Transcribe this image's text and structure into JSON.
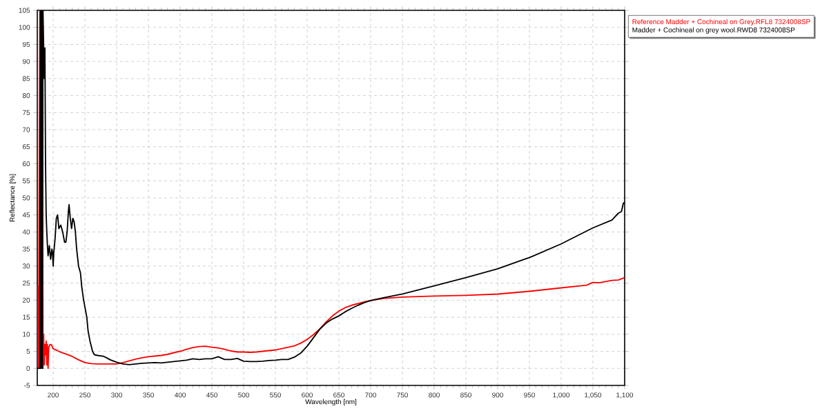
{
  "chart_data": {
    "type": "line",
    "xlabel": "Wavelength [nm]",
    "ylabel": "Reflectance [%]",
    "xlim": [
      175,
      1100
    ],
    "ylim": [
      -5,
      105
    ],
    "xticks": [
      200,
      250,
      300,
      350,
      400,
      450,
      500,
      550,
      600,
      650,
      700,
      750,
      800,
      850,
      900,
      950,
      {
        "value": 1000,
        "label": "1,000"
      },
      {
        "value": 1050,
        "label": "1,050"
      },
      {
        "value": 1100,
        "label": "1,100"
      }
    ],
    "yticks": [
      -5,
      0,
      5,
      10,
      15,
      20,
      25,
      30,
      35,
      40,
      45,
      50,
      55,
      60,
      65,
      70,
      75,
      80,
      85,
      90,
      95,
      100,
      105
    ],
    "grid": true,
    "legend": "top right",
    "line_style": "solid",
    "marker": "none",
    "series": [
      {
        "name": "Reference Madder + Cochineal on Grey.RFL8 7324008SP",
        "color": "#ff0000",
        "x": [
          175,
          176,
          177,
          178,
          179,
          180,
          181,
          182,
          183,
          184,
          185,
          186,
          187,
          188,
          189,
          190,
          191,
          192,
          193,
          195,
          197,
          200,
          210,
          220,
          230,
          240,
          250,
          260,
          270,
          280,
          290,
          300,
          310,
          320,
          330,
          340,
          350,
          360,
          370,
          380,
          390,
          400,
          410,
          420,
          430,
          440,
          450,
          460,
          470,
          480,
          490,
          500,
          510,
          520,
          530,
          540,
          550,
          560,
          570,
          580,
          590,
          600,
          610,
          620,
          630,
          640,
          650,
          660,
          670,
          680,
          690,
          700,
          720,
          750,
          800,
          850,
          900,
          950,
          1000,
          1040,
          1050,
          1060,
          1080,
          1090,
          1100
        ],
        "values": [
          0,
          24,
          0,
          53,
          105,
          0,
          105,
          0,
          105,
          0,
          10,
          1,
          7,
          4,
          8,
          1,
          7,
          0,
          6,
          7,
          7,
          5.8,
          4.9,
          4.2,
          3.5,
          2.5,
          1.7,
          1.4,
          1.3,
          1.3,
          1.3,
          1.3,
          1.7,
          2.2,
          2.7,
          3.1,
          3.4,
          3.6,
          3.8,
          4.1,
          4.6,
          5.0,
          5.6,
          6.1,
          6.4,
          6.5,
          6.2,
          6.0,
          5.6,
          5.1,
          4.8,
          4.8,
          4.7,
          4.8,
          5.0,
          5.2,
          5.4,
          5.8,
          6.2,
          6.6,
          7.4,
          8.5,
          9.9,
          11.6,
          13.6,
          15.4,
          16.8,
          17.8,
          18.5,
          19.0,
          19.5,
          19.9,
          20.5,
          20.9,
          21.2,
          21.4,
          21.8,
          22.6,
          23.6,
          24.4,
          25.2,
          25.1,
          25.8,
          25.9,
          26.6
        ]
      },
      {
        "name": "Madder + Cochineal on grey wool.RWD8 7324008SP",
        "color": "#000000",
        "x": [
          175,
          179,
          180,
          181,
          182,
          183,
          184,
          185,
          186,
          187,
          188,
          189,
          190,
          191,
          192,
          194,
          196,
          198,
          199,
          200,
          201,
          203,
          205,
          207,
          209,
          212,
          215,
          218,
          220,
          222,
          224,
          225,
          227,
          229,
          231,
          233,
          235,
          237,
          240,
          243,
          245,
          248,
          250,
          253,
          255,
          258,
          262,
          265,
          270,
          280,
          285,
          290,
          300,
          310,
          320,
          330,
          340,
          350,
          360,
          370,
          380,
          390,
          400,
          410,
          420,
          430,
          440,
          450,
          460,
          470,
          480,
          490,
          500,
          510,
          520,
          530,
          540,
          550,
          560,
          570,
          580,
          590,
          600,
          610,
          620,
          630,
          640,
          650,
          660,
          670,
          680,
          690,
          700,
          720,
          750,
          800,
          850,
          900,
          950,
          1000,
          1050,
          1080,
          1090,
          1095,
          1098,
          1100
        ],
        "values": [
          0,
          0,
          105,
          0,
          105,
          0,
          105,
          94,
          85,
          94,
          60,
          45,
          40,
          36,
          33,
          36,
          32,
          35,
          34,
          30,
          34,
          38,
          44,
          45,
          41,
          42,
          40,
          37,
          37,
          40,
          46,
          48,
          44,
          41,
          44,
          43,
          40,
          35,
          30,
          28,
          24,
          20,
          18,
          15,
          11,
          8,
          5,
          4,
          3.8,
          3.5,
          3,
          2.5,
          1.8,
          1.3,
          1.1,
          1.3,
          1.5,
          1.6,
          1.7,
          1.6,
          1.8,
          2.0,
          2.2,
          2.4,
          2.8,
          2.6,
          2.8,
          2.8,
          3.4,
          2.6,
          2.6,
          2.9,
          2.1,
          2.0,
          2.0,
          2.1,
          2.3,
          2.4,
          2.6,
          2.6,
          3.3,
          4.5,
          6.5,
          9,
          11.5,
          13.3,
          14.5,
          15.4,
          16.6,
          17.6,
          18.5,
          19.3,
          19.9,
          20.7,
          21.8,
          24.2,
          26.6,
          29.2,
          32.5,
          36.5,
          41.2,
          43.5,
          45.5,
          46,
          48.5,
          48.5
        ]
      }
    ]
  }
}
